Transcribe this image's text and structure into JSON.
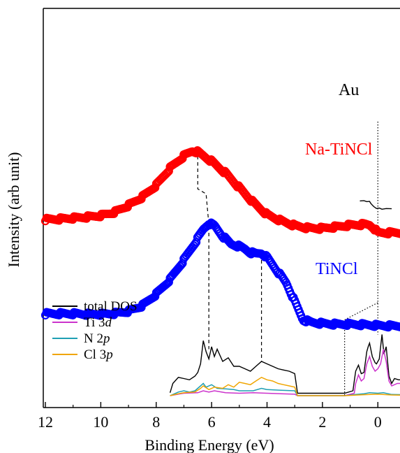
{
  "chart_data": {
    "type": "scatter",
    "xlabel": "Binding Energy (eV)",
    "ylabel": "Intensity (arb unit)",
    "xlim": [
      12,
      -0.9
    ],
    "x_reversed": true,
    "xticks": [
      12,
      10,
      8,
      6,
      4,
      2,
      0
    ],
    "yticks_labeled": false,
    "grid": false,
    "series_labels": [
      {
        "key": "au",
        "text": "Au",
        "color": "#000000"
      },
      {
        "key": "na",
        "text": "Na-TiNCl",
        "color": "#ff0000"
      },
      {
        "key": "ti",
        "text": "TiNCl",
        "color": "#0000ff"
      }
    ],
    "legend": {
      "position": "bottom-left",
      "entries": [
        {
          "key": "total",
          "parts": [
            "total DOS"
          ],
          "color": "#000000"
        },
        {
          "key": "ti3d",
          "parts": [
            "Ti 3",
            "d"
          ],
          "color": "#cc33cc"
        },
        {
          "key": "n2p",
          "parts": [
            "N 2",
            "p"
          ],
          "color": "#1f9fb4"
        },
        {
          "key": "cl3p",
          "parts": [
            "Cl 3",
            "p"
          ],
          "color": "#f0a500"
        }
      ]
    },
    "markers_series": [
      {
        "key": "na",
        "color": "#ff0000",
        "points": [
          [
            12,
            0.72
          ],
          [
            11.5,
            0.722
          ],
          [
            11,
            0.726
          ],
          [
            10.5,
            0.73
          ],
          [
            10,
            0.736
          ],
          [
            9.5,
            0.75
          ],
          [
            9,
            0.778
          ],
          [
            8.5,
            0.812
          ],
          [
            8,
            0.86
          ],
          [
            7.5,
            0.93
          ],
          [
            7,
            0.98
          ],
          [
            6.7,
            1.0
          ],
          [
            6.5,
            0.996
          ],
          [
            6,
            0.958
          ],
          [
            5.5,
            0.91
          ],
          [
            5,
            0.85
          ],
          [
            4.5,
            0.79
          ],
          [
            4,
            0.74
          ],
          [
            3.5,
            0.715
          ],
          [
            3,
            0.695
          ],
          [
            2.5,
            0.685
          ],
          [
            2,
            0.684
          ],
          [
            1.5,
            0.69
          ],
          [
            1,
            0.697
          ],
          [
            0.5,
            0.7
          ],
          [
            0.3,
            0.698
          ],
          [
            0.15,
            0.686
          ],
          [
            0,
            0.666
          ],
          [
            -0.5,
            0.666
          ],
          [
            -0.9,
            0.666
          ]
        ]
      },
      {
        "key": "ti",
        "color": "#0000ff",
        "points": [
          [
            12,
            0.335
          ],
          [
            11.5,
            0.335
          ],
          [
            11,
            0.335
          ],
          [
            10.5,
            0.333
          ],
          [
            10,
            0.333
          ],
          [
            9.5,
            0.336
          ],
          [
            9,
            0.345
          ],
          [
            8.5,
            0.368
          ],
          [
            8,
            0.415
          ],
          [
            7.5,
            0.475
          ],
          [
            7,
            0.555
          ],
          [
            6.6,
            0.625
          ],
          [
            6.3,
            0.68
          ],
          [
            6.1,
            0.705
          ],
          [
            5.9,
            0.695
          ],
          [
            5.6,
            0.652
          ],
          [
            5.3,
            0.62
          ],
          [
            5,
            0.61
          ],
          [
            4.8,
            0.6
          ],
          [
            4.6,
            0.585
          ],
          [
            4.4,
            0.58
          ],
          [
            4.2,
            0.583
          ],
          [
            4,
            0.565
          ],
          [
            3.7,
            0.52
          ],
          [
            3.3,
            0.46
          ],
          [
            3,
            0.385
          ],
          [
            2.7,
            0.31
          ],
          [
            2.4,
            0.3
          ],
          [
            2,
            0.295
          ],
          [
            1.5,
            0.292
          ],
          [
            1,
            0.292
          ],
          [
            0.5,
            0.29
          ],
          [
            0,
            0.287
          ],
          [
            -0.5,
            0.285
          ],
          [
            -0.9,
            0.285
          ]
        ]
      }
    ],
    "line_series": [
      {
        "key": "au",
        "color": "#000000",
        "points": [
          [
            0.65,
            0.796
          ],
          [
            0.5,
            0.797
          ],
          [
            0.4,
            0.793
          ],
          [
            0.3,
            0.794
          ],
          [
            0.25,
            0.785
          ],
          [
            0.15,
            0.773
          ],
          [
            0.05,
            0.765
          ],
          [
            -0.05,
            0.767
          ],
          [
            -0.15,
            0.762
          ],
          [
            -0.3,
            0.765
          ],
          [
            -0.5,
            0.764
          ]
        ]
      },
      {
        "key": "total",
        "color": "#000000",
        "points": [
          [
            7.5,
            0.012
          ],
          [
            7.4,
            0.05
          ],
          [
            7.2,
            0.075
          ],
          [
            7,
            0.07
          ],
          [
            6.8,
            0.065
          ],
          [
            6.6,
            0.08
          ],
          [
            6.5,
            0.095
          ],
          [
            6.4,
            0.13
          ],
          [
            6.3,
            0.225
          ],
          [
            6.2,
            0.18
          ],
          [
            6.1,
            0.15
          ],
          [
            6.0,
            0.2
          ],
          [
            5.9,
            0.16
          ],
          [
            5.8,
            0.19
          ],
          [
            5.6,
            0.14
          ],
          [
            5.4,
            0.155
          ],
          [
            5.2,
            0.12
          ],
          [
            5.0,
            0.12
          ],
          [
            4.8,
            0.11
          ],
          [
            4.6,
            0.1
          ],
          [
            4.4,
            0.12
          ],
          [
            4.2,
            0.14
          ],
          [
            4.0,
            0.13
          ],
          [
            3.8,
            0.12
          ],
          [
            3.6,
            0.11
          ],
          [
            3.4,
            0.105
          ],
          [
            3.2,
            0.1
          ],
          [
            3.0,
            0.09
          ],
          [
            2.9,
            0.01
          ],
          [
            1.2,
            0.01
          ],
          [
            0.9,
            0.02
          ],
          [
            0.85,
            0.06
          ],
          [
            0.8,
            0.1
          ],
          [
            0.7,
            0.125
          ],
          [
            0.6,
            0.09
          ],
          [
            0.5,
            0.095
          ],
          [
            0.4,
            0.18
          ],
          [
            0.35,
            0.2
          ],
          [
            0.3,
            0.215
          ],
          [
            0.2,
            0.16
          ],
          [
            0.1,
            0.135
          ],
          [
            0.05,
            0.13
          ],
          [
            -0.05,
            0.15
          ],
          [
            -0.15,
            0.25
          ],
          [
            -0.22,
            0.17
          ],
          [
            -0.3,
            0.2
          ],
          [
            -0.4,
            0.08
          ],
          [
            -0.5,
            0.05
          ],
          [
            -0.6,
            0.07
          ],
          [
            -0.75,
            0.065
          ],
          [
            -0.9,
            0.065
          ]
        ]
      },
      {
        "key": "ti3d",
        "color": "#cc33cc",
        "points": [
          [
            7.5,
            0.0
          ],
          [
            7,
            0.01
          ],
          [
            6.5,
            0.012
          ],
          [
            6.3,
            0.02
          ],
          [
            6.1,
            0.015
          ],
          [
            5.9,
            0.02
          ],
          [
            5.5,
            0.012
          ],
          [
            5,
            0.01
          ],
          [
            4.5,
            0.012
          ],
          [
            4,
            0.01
          ],
          [
            3.5,
            0.008
          ],
          [
            3,
            0.006
          ],
          [
            2.9,
            0.0
          ],
          [
            1.2,
            0.0
          ],
          [
            0.85,
            0.01
          ],
          [
            0.8,
            0.05
          ],
          [
            0.7,
            0.085
          ],
          [
            0.6,
            0.06
          ],
          [
            0.5,
            0.07
          ],
          [
            0.4,
            0.13
          ],
          [
            0.3,
            0.16
          ],
          [
            0.2,
            0.12
          ],
          [
            0.1,
            0.1
          ],
          [
            0.0,
            0.11
          ],
          [
            -0.1,
            0.13
          ],
          [
            -0.2,
            0.19
          ],
          [
            -0.3,
            0.14
          ],
          [
            -0.4,
            0.06
          ],
          [
            -0.5,
            0.04
          ],
          [
            -0.7,
            0.05
          ],
          [
            -0.9,
            0.05
          ]
        ]
      },
      {
        "key": "n2p",
        "color": "#1f9fb4",
        "points": [
          [
            7.5,
            0.0
          ],
          [
            7.2,
            0.015
          ],
          [
            7,
            0.02
          ],
          [
            6.8,
            0.015
          ],
          [
            6.6,
            0.02
          ],
          [
            6.4,
            0.04
          ],
          [
            6.3,
            0.05
          ],
          [
            6.2,
            0.035
          ],
          [
            6,
            0.045
          ],
          [
            5.8,
            0.03
          ],
          [
            5.5,
            0.028
          ],
          [
            5.2,
            0.025
          ],
          [
            5,
            0.02
          ],
          [
            4.5,
            0.02
          ],
          [
            4.2,
            0.03
          ],
          [
            4,
            0.025
          ],
          [
            3.5,
            0.022
          ],
          [
            3,
            0.02
          ],
          [
            2.9,
            0.0
          ],
          [
            1.2,
            0.0
          ],
          [
            0.8,
            0.005
          ],
          [
            0.5,
            0.008
          ],
          [
            0.3,
            0.012
          ],
          [
            0,
            0.01
          ],
          [
            -0.2,
            0.012
          ],
          [
            -0.5,
            0.005
          ],
          [
            -0.9,
            0.004
          ]
        ]
      },
      {
        "key": "cl3p",
        "color": "#f0a500",
        "points": [
          [
            7.5,
            0.0
          ],
          [
            7.2,
            0.008
          ],
          [
            7,
            0.012
          ],
          [
            6.6,
            0.015
          ],
          [
            6.4,
            0.03
          ],
          [
            6.3,
            0.04
          ],
          [
            6.1,
            0.025
          ],
          [
            5.9,
            0.035
          ],
          [
            5.6,
            0.03
          ],
          [
            5.4,
            0.045
          ],
          [
            5.2,
            0.035
          ],
          [
            5.0,
            0.055
          ],
          [
            4.8,
            0.05
          ],
          [
            4.6,
            0.045
          ],
          [
            4.4,
            0.06
          ],
          [
            4.2,
            0.075
          ],
          [
            4.0,
            0.065
          ],
          [
            3.8,
            0.06
          ],
          [
            3.6,
            0.05
          ],
          [
            3.4,
            0.045
          ],
          [
            3.2,
            0.04
          ],
          [
            3.0,
            0.035
          ],
          [
            2.9,
            0.0
          ],
          [
            1.2,
            0.0
          ],
          [
            0.5,
            0.004
          ],
          [
            0,
            0.006
          ],
          [
            -0.5,
            0.003
          ],
          [
            -0.9,
            0.002
          ]
        ]
      }
    ],
    "guides": [
      {
        "key": "fermi-level-line",
        "style": "dotted",
        "points": [
          [
            0.0,
            1.12
          ],
          [
            0.0,
            0.666
          ],
          [
            0.0,
            0.25
          ]
        ]
      },
      {
        "key": "dos-shift-line",
        "style": "dotted",
        "points": [
          [
            0.0,
            0.38
          ],
          [
            1.2,
            0.31
          ],
          [
            1.2,
            0.0
          ]
        ]
      },
      {
        "key": "peak-track-line-1",
        "style": "dashed",
        "points": [
          [
            6.5,
            0.98
          ],
          [
            6.5,
            0.845
          ],
          [
            6.2,
            0.825
          ],
          [
            6.1,
            0.7
          ],
          [
            6.1,
            0.19
          ]
        ]
      },
      {
        "key": "peak-track-line-2",
        "style": "dashed",
        "points": [
          [
            4.2,
            0.58
          ],
          [
            4.2,
            0.14
          ]
        ]
      }
    ]
  }
}
